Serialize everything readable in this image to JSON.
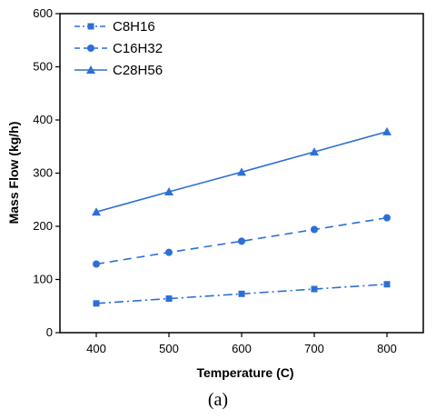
{
  "chart_data": {
    "type": "line",
    "title": "",
    "xlabel": "Temperature (C)",
    "ylabel": "Mass Flow (kg/h)",
    "panel_label": "(a)",
    "x": [
      400,
      500,
      600,
      700,
      800
    ],
    "xlim": [
      350,
      850
    ],
    "ylim": [
      0,
      600
    ],
    "xticks": [
      400,
      500,
      600,
      700,
      800
    ],
    "yticks": [
      0,
      100,
      200,
      300,
      400,
      500,
      600
    ],
    "grid": false,
    "legend_position": "top-left",
    "color": "#2d6fd6",
    "series": [
      {
        "name": "C8H16",
        "values": [
          55,
          64,
          73,
          82,
          91
        ],
        "marker": "square",
        "line": "dash-dot"
      },
      {
        "name": "C16H32",
        "values": [
          129,
          151,
          172,
          194,
          216
        ],
        "marker": "circle",
        "line": "dashed"
      },
      {
        "name": "C28H56",
        "values": [
          227,
          265,
          302,
          340,
          378
        ],
        "marker": "triangle",
        "line": "solid"
      }
    ]
  }
}
